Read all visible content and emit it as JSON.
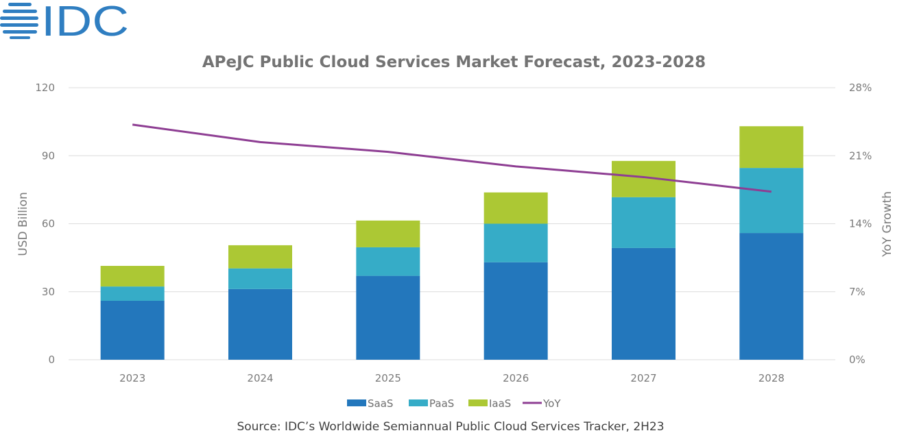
{
  "logo": {
    "text": "IDC",
    "color": "#2f7ec1"
  },
  "chart_data": {
    "type": "bar",
    "stacked": true,
    "title": "APeJC Public Cloud Services Market Forecast, 2023-2028",
    "xlabel": "",
    "ylabel": "USD Billion",
    "y2label": "YoY Growth",
    "categories": [
      "2023",
      "2024",
      "2025",
      "2026",
      "2027",
      "2028"
    ],
    "ylim": [
      0,
      120
    ],
    "yticks": [
      0,
      30,
      60,
      90,
      120
    ],
    "y2lim": [
      0,
      28
    ],
    "y2ticks": [
      "0%",
      "7%",
      "14%",
      "21%",
      "28%"
    ],
    "grid": true,
    "legend_position": "bottom",
    "series": [
      {
        "name": "SaaS",
        "type": "bar",
        "axis": "left",
        "color": "#2377bc",
        "values": [
          26.0,
          31.2,
          37.0,
          43.0,
          49.3,
          55.9
        ]
      },
      {
        "name": "PaaS",
        "type": "bar",
        "axis": "left",
        "color": "#36acc7",
        "values": [
          6.3,
          9.1,
          12.6,
          17.0,
          22.4,
          28.7
        ]
      },
      {
        "name": "IaaS",
        "type": "bar",
        "axis": "left",
        "color": "#acc834",
        "values": [
          9.1,
          10.2,
          11.8,
          13.8,
          16.0,
          18.4
        ]
      },
      {
        "name": "YoY",
        "type": "line",
        "axis": "right",
        "color": "#8e3e93",
        "values": [
          24.2,
          22.4,
          21.4,
          19.9,
          18.8,
          17.3
        ]
      }
    ],
    "source": "Source: IDC’s Worldwide Semiannual Public Cloud Services Tracker, 2H23"
  }
}
